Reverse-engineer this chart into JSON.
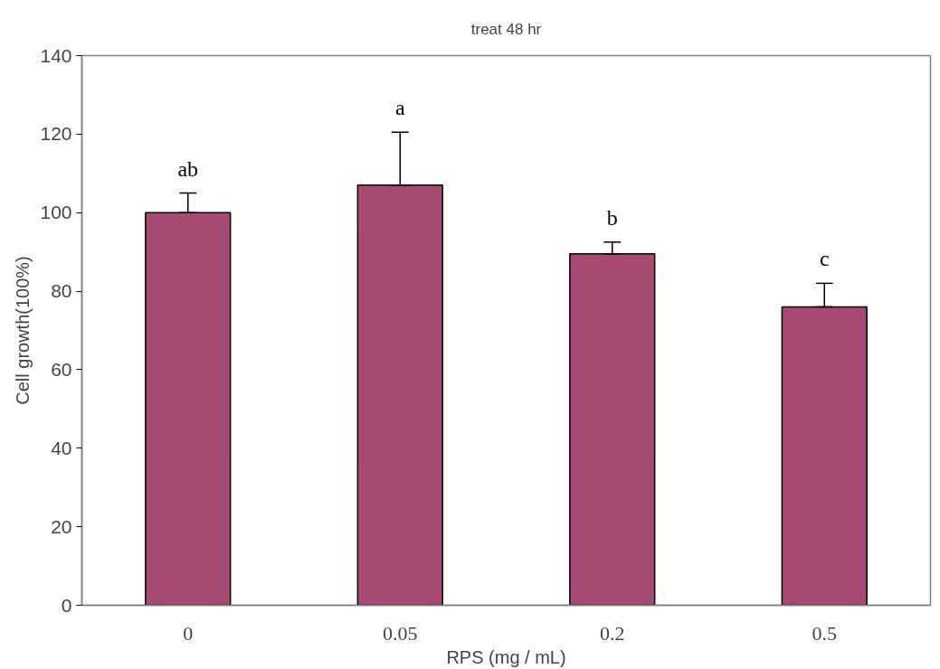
{
  "chart_data": {
    "type": "bar",
    "title": "treat 48 hr",
    "xlabel": "RPS (mg / mL)",
    "ylabel": "Cell growth(100%)",
    "categories": [
      "0",
      "0.05",
      "0.2",
      "0.5"
    ],
    "values": [
      100,
      107,
      89.5,
      76
    ],
    "errors": [
      [
        100,
        105
      ],
      [
        107,
        120.5
      ],
      [
        89.5,
        92.5
      ],
      [
        76,
        82
      ]
    ],
    "color": "#a64a74",
    "ylim": [
      0,
      140
    ],
    "yticks": [
      0,
      20,
      40,
      60,
      80,
      100,
      120,
      140
    ],
    "grid": false,
    "annotations": [
      "ab",
      "a",
      "b",
      "c"
    ]
  }
}
